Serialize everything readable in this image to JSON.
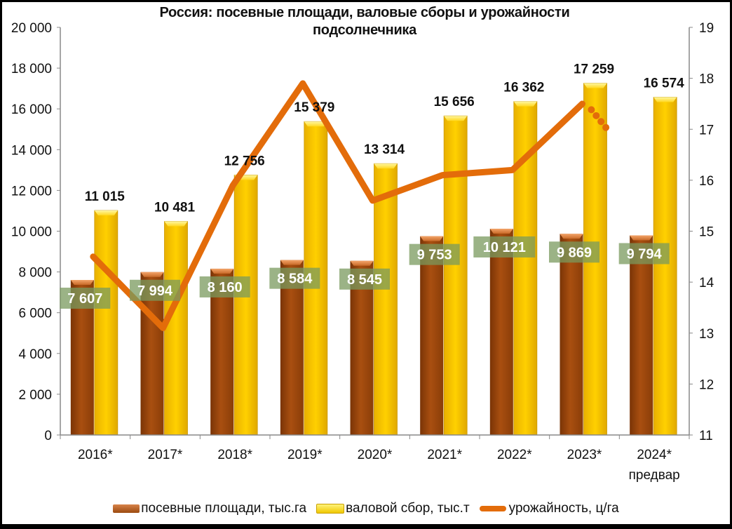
{
  "chart_data": {
    "type": "bar",
    "title": "Россия: посевные площади, валовые сборы и урожайности подсолнечника",
    "title_line1": "Россия: посевные площади, валовые сборы и урожайности",
    "title_line2": "подсолнечника",
    "categories": [
      "2016*",
      "2017*",
      "2018*",
      "2019*",
      "2020*",
      "2021*",
      "2022*",
      "2023*",
      "2024*"
    ],
    "category_sublabels": [
      "",
      "",
      "",
      "",
      "",
      "",
      "",
      "",
      "предвар"
    ],
    "series": [
      {
        "name": "посевные площади, тыс.га",
        "type": "bar",
        "axis": "left",
        "color": "#a0480e",
        "values": [
          7607,
          7994,
          8160,
          8584,
          8545,
          9753,
          10121,
          9869,
          9794
        ],
        "labels": [
          "7 607",
          "7 994",
          "8 160",
          "8 584",
          "8 545",
          "9 753",
          "10 121",
          "9 869",
          "9 794"
        ]
      },
      {
        "name": "валовой сбор, тыс.т",
        "type": "bar",
        "axis": "left",
        "color": "#ffcc00",
        "values": [
          11015,
          10481,
          12756,
          15379,
          13314,
          15656,
          16362,
          17259,
          16574
        ],
        "labels": [
          "11 015",
          "10 481",
          "12 756",
          "15 379",
          "13 314",
          "15 656",
          "16 362",
          "17 259",
          "16 574"
        ]
      },
      {
        "name": "урожайность, ц/га",
        "type": "line",
        "axis": "right",
        "color": "#e36c0a",
        "values": [
          14.5,
          13.1,
          15.9,
          17.9,
          15.6,
          16.1,
          16.2,
          17.5,
          17.0
        ],
        "note": "2023→2024 segment dotted (preliminary)"
      }
    ],
    "left_axis": {
      "min": 0,
      "max": 20000,
      "step": 2000,
      "ticks": [
        "0",
        "2 000",
        "4 000",
        "6 000",
        "8 000",
        "10 000",
        "12 000",
        "14 000",
        "16 000",
        "18 000",
        "20 000"
      ]
    },
    "right_axis": {
      "min": 11,
      "max": 19,
      "step": 1,
      "ticks": [
        "11",
        "12",
        "13",
        "14",
        "15",
        "16",
        "17",
        "18",
        "19"
      ]
    },
    "xlabel": "",
    "ylabel": "",
    "grid": false,
    "legend_position": "bottom"
  },
  "legend": {
    "area": "посевные площади, тыс.га",
    "harvest": "валовой сбор, тыс.т",
    "yield": "урожайность, ц/га"
  }
}
